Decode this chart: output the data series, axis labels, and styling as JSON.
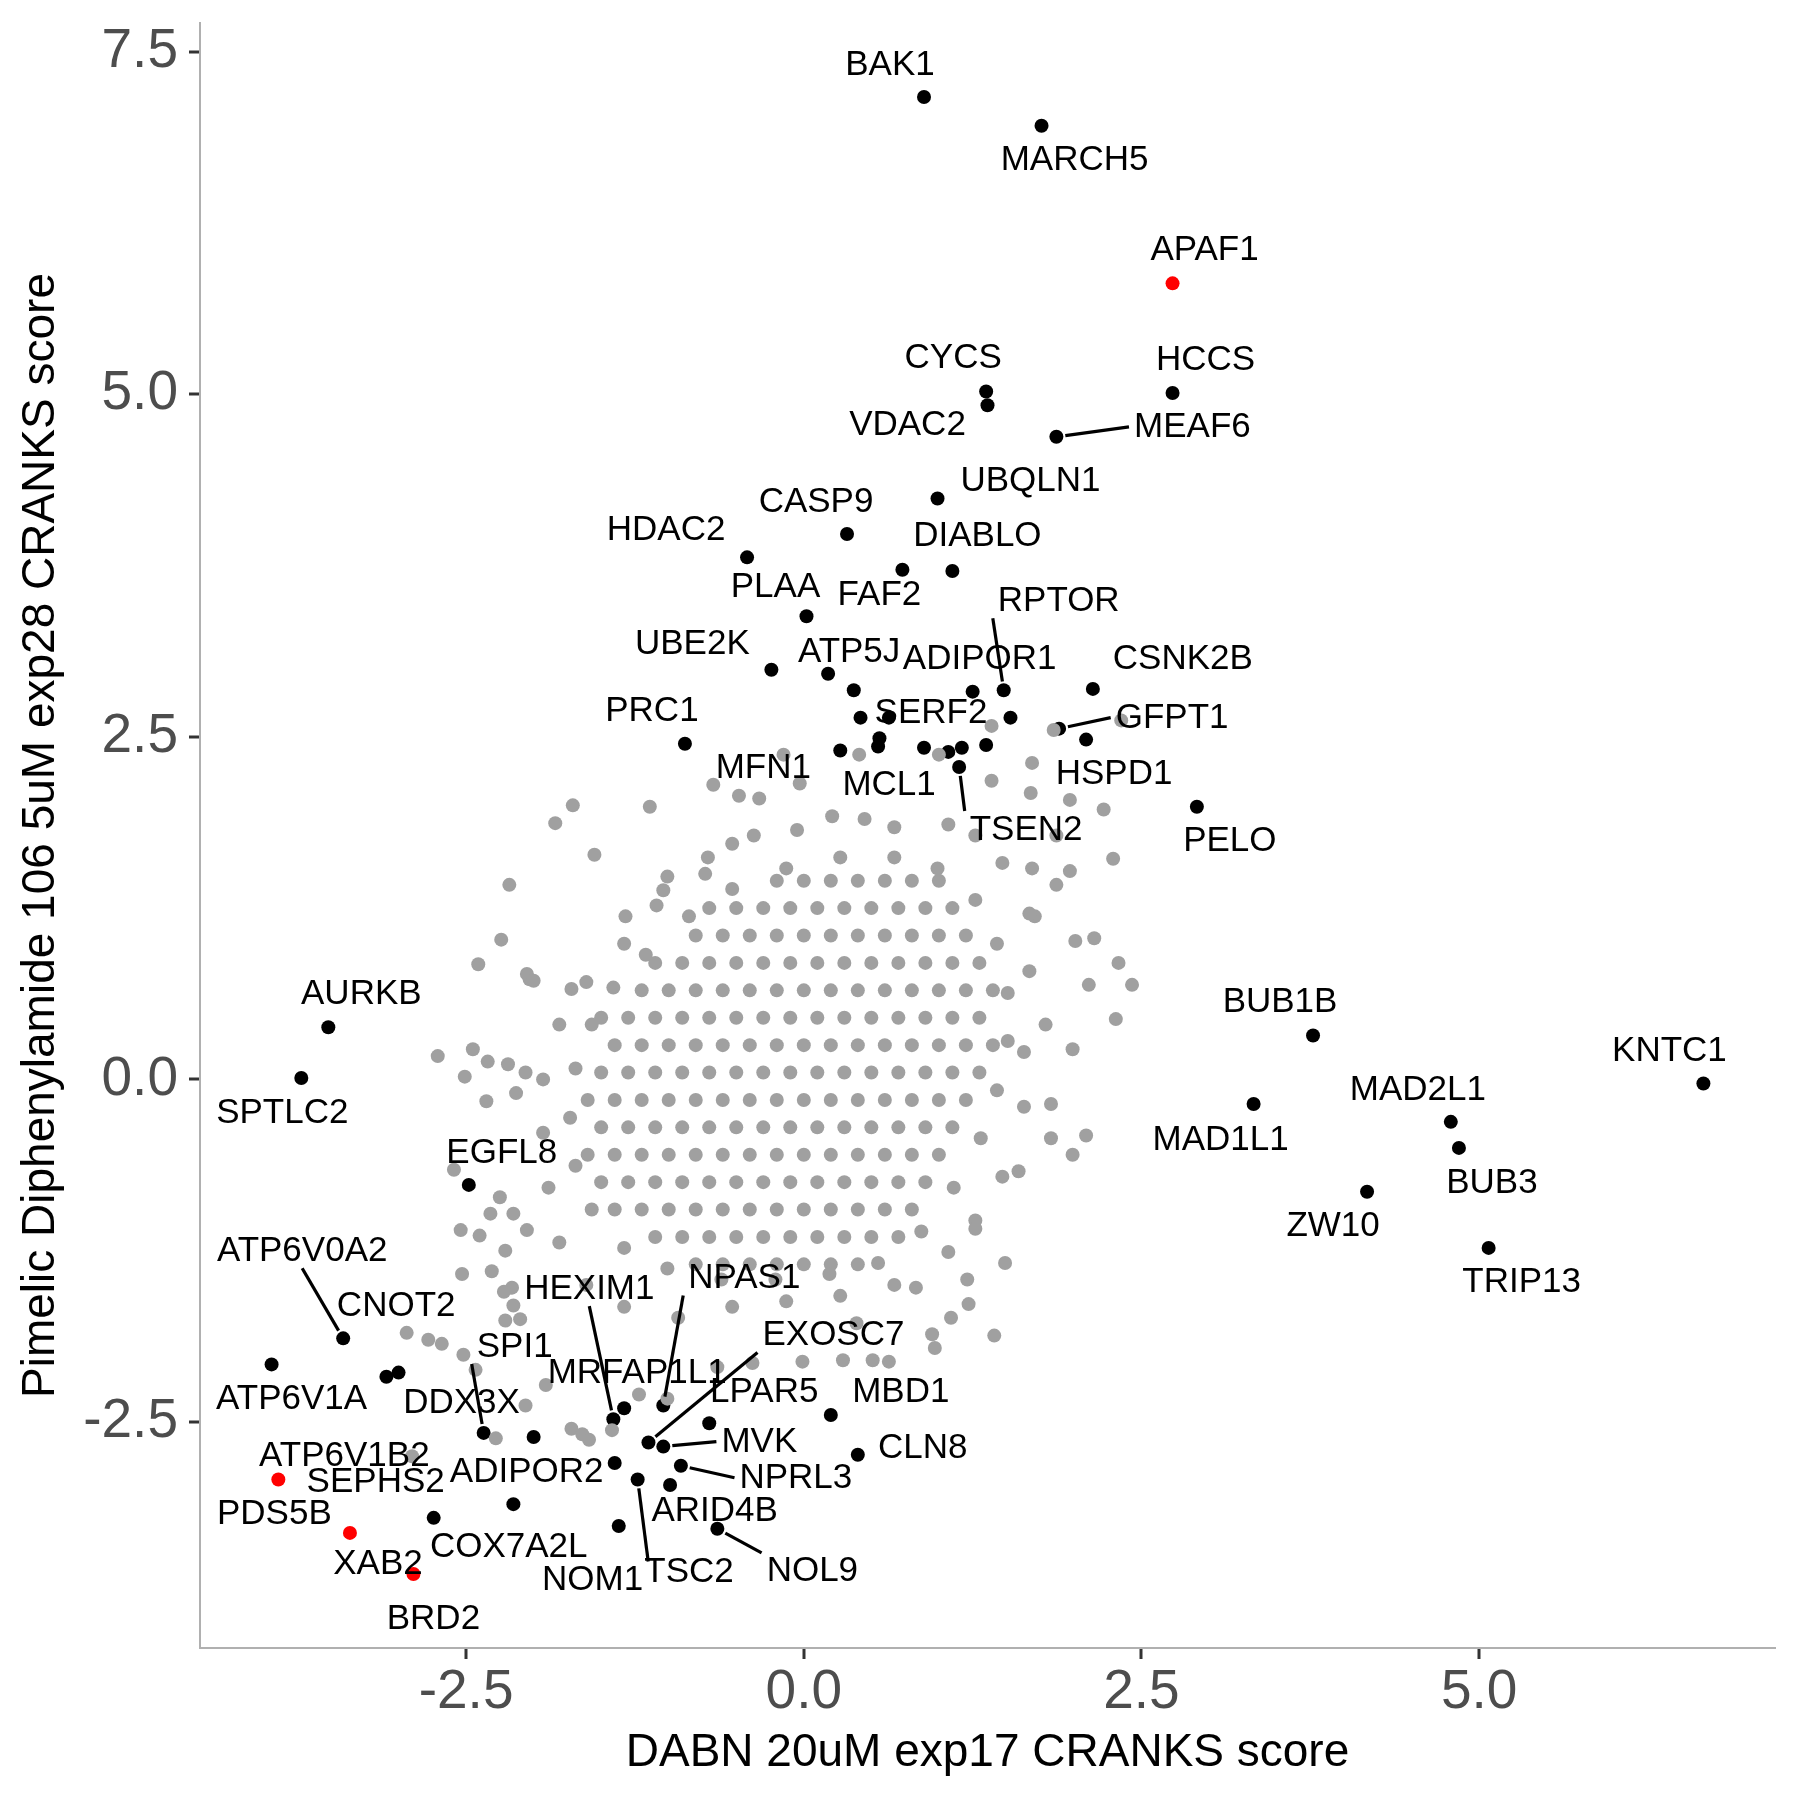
{
  "chart_data": {
    "type": "scatter",
    "xlabel": "DABN 20uM exp17 CRANKS score",
    "ylabel": "Pimelic Diphenylamide 106 5uM exp28 CRANKS score",
    "xlim": [
      -4.47,
      7.19
    ],
    "ylim": [
      -4.15,
      7.71
    ],
    "xticks": [
      -2.5,
      {
        "value": 0,
        "label": "0.0"
      },
      2.5,
      {
        "value": 5,
        "label": "5.0"
      }
    ],
    "yticks": [
      -2.5,
      {
        "value": 0,
        "label": "0.0"
      },
      2.5,
      {
        "value": 5,
        "label": "5.0"
      },
      7.5
    ],
    "marker": "circle",
    "series": [
      {
        "color": "#a0a0a0",
        "x": [
          -0.2,
          0,
          0.2,
          0.4,
          0.6,
          0.8,
          1,
          -0.7,
          -0.5,
          -0.3,
          -0.1,
          0.1,
          0.3,
          0.5,
          0.7,
          0.9,
          1.1,
          -0.8,
          -0.6,
          -0.4,
          -0.2,
          0,
          0.2,
          0.4,
          0.6,
          0.8,
          1,
          1.2,
          -1.1,
          -0.9,
          -0.7,
          -0.5,
          -0.3,
          -0.1,
          0.1,
          0.3,
          0.5,
          0.7,
          0.9,
          1.1,
          1.3,
          -1.2,
          -1,
          -0.8,
          -0.6,
          -0.4,
          -0.2,
          0,
          0.2,
          0.4,
          0.6,
          0.8,
          1,
          1.2,
          1.4,
          -1.5,
          -1.3,
          -1.1,
          -0.9,
          -0.7,
          -0.5,
          -0.3,
          -0.1,
          0.1,
          0.3,
          0.5,
          0.7,
          0.9,
          1.1,
          1.3,
          -1.4,
          -1.2,
          -1,
          -0.8,
          -0.6,
          -0.4,
          -0.2,
          0,
          0.2,
          0.4,
          0.6,
          0.8,
          1,
          1.2,
          1.4,
          -1.5,
          -1.3,
          -1.1,
          -0.9,
          -0.7,
          -0.5,
          -0.3,
          -0.1,
          0.1,
          0.3,
          0.5,
          0.7,
          0.9,
          1.1,
          1.3,
          -1.6,
          -1.4,
          -1.2,
          -1,
          -0.8,
          -0.6,
          -0.4,
          -0.2,
          0,
          0.2,
          0.4,
          0.6,
          0.8,
          1,
          1.2,
          -1.5,
          -1.3,
          -1.1,
          -0.9,
          -0.7,
          -0.5,
          -0.3,
          -0.1,
          0.1,
          0.3,
          0.5,
          0.7,
          0.9,
          1.1,
          -1.6,
          -1.4,
          -1.2,
          -1,
          -0.8,
          -0.6,
          -0.4,
          -0.2,
          0,
          0.2,
          0.4,
          0.6,
          0.8,
          1,
          -1.5,
          -1.3,
          -1.1,
          -0.9,
          -0.7,
          -0.5,
          -0.3,
          -0.1,
          0.1,
          0.3,
          0.5,
          0.7,
          0.9,
          -1.4,
          -1.2,
          -1,
          -0.8,
          -0.6,
          -0.4,
          -0.2,
          0,
          0.2,
          0.4,
          0.6,
          0.8,
          -1.1,
          -0.9,
          -0.7,
          -0.5,
          -0.3,
          -0.1,
          0.1,
          0.3,
          0.5,
          0.7,
          -0.8,
          -0.6,
          -0.4,
          -0.2,
          0,
          0.2,
          0.4,
          -1.17,
          -0.85,
          -0.53,
          -0.13,
          0.27,
          0.67,
          0.99,
          1.27,
          1.43,
          1.51,
          1.51,
          1.43,
          1.31,
          1.11,
          0.87,
          0.55,
          0.19,
          -0.21,
          -0.61,
          -1.01,
          -1.33,
          -1.57,
          -1.69,
          -1.73,
          -1.69,
          -1.57,
          -1.41,
          1.67,
          1.79,
          1.63,
          1.71,
          1.47,
          1.27,
          1.07,
          1.87,
          -1.93,
          -1.89,
          -1.81,
          -1.61,
          -1.33,
          -0.93,
          -0.53,
          -0.13,
          0.27,
          0.67,
          -1.81,
          -1.93,
          -1.61,
          -1.33,
          -1.09,
          -0.73,
          1.63,
          1.47,
          1.27,
          0.41,
          1.0,
          1.39,
          1.85,
          2.35,
          1.69,
          2.22,
          2.29,
          1.97,
          1.68,
          -1.71,
          -1.14,
          -1.55,
          -0.67,
          -0.48,
          -0.33,
          -0.03,
          -0.15,
          -1.32,
          -1.04,
          -0.71,
          -1.84,
          -2.18,
          -1.01,
          -2.24,
          -2.41,
          -2.03,
          -2.71,
          -2.45,
          -2.51,
          -2.19,
          -2.06,
          -2.35,
          -2.13,
          -2.59,
          -2.25,
          -2.54,
          -2.4,
          -2.53,
          -2.31,
          -2.16,
          2.43,
          2.31,
          2.33,
          2.15,
          2.01,
          2.11,
          1.99,
          2.09,
          1.99,
          1.83,
          1.83,
          1.97,
          1.67,
          1.59,
          1.49,
          1.41,
          1.21,
          1.09,
          0.97,
          0.63,
          0.51,
          0.29,
          -0.01,
          0.95,
          1.27,
          1.07,
          -0.05,
          0.21,
          0.45,
          0.67,
          -0.53,
          -0.37,
          1.39,
          1.69,
          1.87,
          -2.05,
          -2.0,
          -1.72,
          -2.34,
          -2.32,
          -2.15,
          -2.05,
          -2.21,
          -2.22,
          -2.15,
          -2.21,
          -2.1,
          -2.94,
          -2.78,
          -2.68,
          -2.52,
          -2.43,
          -1.91,
          -2.06,
          -2.28,
          -1.72,
          -1.64,
          -1.59,
          -1.42,
          -2.9,
          -1.22,
          -1.01,
          -0.38,
          1.22,
          -0.64,
          0.83,
          0.39
        ],
        "values": [
          1.45,
          1.45,
          1.45,
          1.45,
          1.45,
          1.45,
          1.45,
          1.25,
          1.25,
          1.25,
          1.25,
          1.25,
          1.25,
          1.25,
          1.25,
          1.25,
          1.25,
          1.05,
          1.05,
          1.05,
          1.05,
          1.05,
          1.05,
          1.05,
          1.05,
          1.05,
          1.05,
          1.05,
          0.85,
          0.85,
          0.85,
          0.85,
          0.85,
          0.85,
          0.85,
          0.85,
          0.85,
          0.85,
          0.85,
          0.85,
          0.85,
          0.65,
          0.65,
          0.65,
          0.65,
          0.65,
          0.65,
          0.65,
          0.65,
          0.65,
          0.65,
          0.65,
          0.65,
          0.65,
          0.65,
          0.45,
          0.45,
          0.45,
          0.45,
          0.45,
          0.45,
          0.45,
          0.45,
          0.45,
          0.45,
          0.45,
          0.45,
          0.45,
          0.45,
          0.45,
          0.25,
          0.25,
          0.25,
          0.25,
          0.25,
          0.25,
          0.25,
          0.25,
          0.25,
          0.25,
          0.25,
          0.25,
          0.25,
          0.25,
          0.25,
          0.05,
          0.05,
          0.05,
          0.05,
          0.05,
          0.05,
          0.05,
          0.05,
          0.05,
          0.05,
          0.05,
          0.05,
          0.05,
          0.05,
          0.05,
          -0.15,
          -0.15,
          -0.15,
          -0.15,
          -0.15,
          -0.15,
          -0.15,
          -0.15,
          -0.15,
          -0.15,
          -0.15,
          -0.15,
          -0.15,
          -0.15,
          -0.15,
          -0.35,
          -0.35,
          -0.35,
          -0.35,
          -0.35,
          -0.35,
          -0.35,
          -0.35,
          -0.35,
          -0.35,
          -0.35,
          -0.35,
          -0.35,
          -0.35,
          -0.55,
          -0.55,
          -0.55,
          -0.55,
          -0.55,
          -0.55,
          -0.55,
          -0.55,
          -0.55,
          -0.55,
          -0.55,
          -0.55,
          -0.55,
          -0.55,
          -0.75,
          -0.75,
          -0.75,
          -0.75,
          -0.75,
          -0.75,
          -0.75,
          -0.75,
          -0.75,
          -0.75,
          -0.75,
          -0.75,
          -0.75,
          -0.95,
          -0.95,
          -0.95,
          -0.95,
          -0.95,
          -0.95,
          -0.95,
          -0.95,
          -0.95,
          -0.95,
          -0.95,
          -0.95,
          -1.15,
          -1.15,
          -1.15,
          -1.15,
          -1.15,
          -1.15,
          -1.15,
          -1.15,
          -1.15,
          -1.15,
          -1.35,
          -1.35,
          -1.35,
          -1.35,
          -1.35,
          -1.35,
          -1.35,
          0.91,
          1.19,
          1.39,
          1.54,
          1.62,
          1.62,
          1.54,
          1.31,
          0.99,
          0.63,
          0.28,
          -0.08,
          -0.43,
          -0.79,
          -1.11,
          -1.34,
          -1.42,
          -1.46,
          -1.46,
          -1.38,
          -1.23,
          -0.95,
          -0.63,
          -0.28,
          0.08,
          0.4,
          0.67,
          0.79,
          0.4,
          0.2,
          1.19,
          1.58,
          1.78,
          1.86,
          1.78,
          -0.39,
          -0.79,
          -1.19,
          -1.5,
          -1.66,
          -1.74,
          -1.66,
          -1.62,
          -1.58,
          -1.5,
          0.4,
          0.0,
          0.71,
          0.99,
          1.27,
          1.5,
          -0.2,
          -0.71,
          -1.03,
          2.37,
          2.37,
          2.58,
          2.55,
          2.62,
          2.31,
          1.97,
          1.61,
          2.04,
          2.09,
          2.0,
          1.99,
          1.64,
          2.15,
          2.07,
          2.05,
          2.16,
          2.37,
          1.19,
          1.38,
          1.62,
          1.87,
          1.42,
          1.48,
          1.02,
          0.84,
          0.73,
          0.17,
          0.22,
          0.02,
          0.11,
          0.05,
          -0.16,
          -0.1,
          -0.66,
          -0.86,
          -1.1,
          -1.14,
          -1.42,
          -1.4,
          -1.52,
          0.69,
          0.44,
          0.85,
          1.03,
          1.01,
          0.69,
          0.22,
          -0.41,
          -0.55,
          -0.18,
          -0.43,
          1.52,
          1.21,
          -0.67,
          -1.34,
          -1.87,
          -1.46,
          -1.74,
          -1.96,
          -2.06,
          -2.05,
          -2.05,
          -2.06,
          -1.86,
          -1.09,
          -1.26,
          1.82,
          1.92,
          1.9,
          1.84,
          1.72,
          1.78,
          2.18,
          1.54,
          1.42,
          0.77,
          0.72,
          0.66,
          0.13,
          -0.98,
          -0.98,
          -1.1,
          -1.25,
          -1.55,
          -1.65,
          -1.76,
          -1.75,
          -1.85,
          -1.9,
          -1.93,
          -2.01,
          -2.12,
          -2.23,
          -2.38,
          -2.62,
          -2.55,
          -2.59,
          -2.63,
          -2.56,
          -2.75,
          -2.3,
          -2.33,
          -2.07,
          -1.64,
          -2.1,
          -1.52,
          -1.78
        ]
      },
      {
        "color": "#000000",
        "x": [
          0.89,
          1.76,
          1.35,
          2.73,
          1.36,
          1.87,
          0.99,
          0.32,
          -0.42,
          1.1,
          0.73,
          0.02,
          -0.24,
          0.18,
          1.25,
          1.48,
          2.14,
          -0.88,
          0.89,
          1.89,
          2.09,
          0.27,
          0.55,
          1.15,
          2.91,
          3.77,
          6.66,
          4.79,
          3.33,
          4.85,
          4.17,
          5.07,
          -3.52,
          -3.72,
          -2.48,
          -3.41,
          -3.94,
          -3.0,
          -2.37,
          -1.41,
          -1.04,
          -1.15,
          -1.33,
          -0.7,
          0.2,
          0.4,
          -1.04,
          -2.0,
          -0.91,
          -1.4,
          -2.74,
          -0.99,
          -1.23,
          -0.64,
          -1.37,
          0.37,
          0.42,
          0.63,
          1.53,
          0.56,
          1.07,
          1.17,
          1.35,
          -3.09,
          -2.15
        ],
        "values": [
          7.17,
          6.96,
          5.02,
          5.01,
          4.92,
          4.69,
          4.24,
          3.98,
          3.81,
          3.71,
          3.72,
          3.38,
          2.99,
          2.96,
          2.83,
          2.84,
          2.85,
          2.45,
          2.42,
          2.56,
          2.48,
          2.4,
          2.43,
          2.28,
          1.99,
          0.32,
          -0.03,
          -0.31,
          -0.18,
          -0.5,
          -0.82,
          -1.23,
          0.38,
          0.01,
          -0.77,
          -1.89,
          -2.08,
          -2.14,
          -2.58,
          -2.48,
          -2.38,
          -2.65,
          -2.4,
          -2.51,
          -2.45,
          -2.74,
          -2.68,
          -2.61,
          -2.82,
          -2.8,
          -3.2,
          -2.96,
          -2.92,
          -3.28,
          -3.26,
          2.84,
          2.64,
          2.64,
          2.64,
          2.49,
          2.39,
          2.42,
          2.44,
          -2.17,
          -3.1
        ]
      },
      {
        "color": "#ff0000",
        "x": [
          2.73,
          -3.89,
          -3.36,
          -2.89
        ],
        "values": [
          5.81,
          -2.92,
          -3.31,
          -3.61
        ]
      }
    ],
    "annotations": [
      {
        "text": "BAK1",
        "x": 0.89,
        "y": 7.17
      },
      {
        "text": "MARCH5",
        "x": 1.76,
        "y": 6.96
      },
      {
        "text": "APAF1",
        "x": 2.73,
        "y": 5.81
      },
      {
        "text": "CYCS",
        "x": 1.35,
        "y": 5.02
      },
      {
        "text": "HCCS",
        "x": 2.73,
        "y": 5.01
      },
      {
        "text": "VDAC2",
        "x": 1.36,
        "y": 4.92
      },
      {
        "text": "MEAF6",
        "x": 1.87,
        "y": 4.69
      },
      {
        "text": "UBQLN1",
        "x": 0.99,
        "y": 4.24
      },
      {
        "text": "CASP9",
        "x": 0.32,
        "y": 3.98
      },
      {
        "text": "HDAC2",
        "x": -0.42,
        "y": 3.81
      },
      {
        "text": "DIABLO",
        "x": 1.1,
        "y": 3.71
      },
      {
        "text": "FAF2",
        "x": 0.73,
        "y": 3.72
      },
      {
        "text": "PLAA",
        "x": 0.02,
        "y": 3.38
      },
      {
        "text": "UBE2K",
        "x": -0.24,
        "y": 2.99
      },
      {
        "text": "ATP5J",
        "x": 0.18,
        "y": 2.96
      },
      {
        "text": "ADIPOR1",
        "x": 1.25,
        "y": 2.83
      },
      {
        "text": "RPTOR",
        "x": 1.48,
        "y": 2.84
      },
      {
        "text": "CSNK2B",
        "x": 2.14,
        "y": 2.85
      },
      {
        "text": "PRC1",
        "x": -0.88,
        "y": 2.45
      },
      {
        "text": "SERF2",
        "x": 0.89,
        "y": 2.42
      },
      {
        "text": "GFPT1",
        "x": 1.89,
        "y": 2.56
      },
      {
        "text": "HSPD1",
        "x": 2.09,
        "y": 2.48
      },
      {
        "text": "MFN1",
        "x": 0.27,
        "y": 2.4
      },
      {
        "text": "MCL1",
        "x": 0.55,
        "y": 2.43
      },
      {
        "text": "TSEN2",
        "x": 1.15,
        "y": 2.28
      },
      {
        "text": "PELO",
        "x": 2.91,
        "y": 1.99
      },
      {
        "text": "BUB1B",
        "x": 3.77,
        "y": 0.32
      },
      {
        "text": "KNTC1",
        "x": 6.66,
        "y": -0.03
      },
      {
        "text": "MAD2L1",
        "x": 4.79,
        "y": -0.31
      },
      {
        "text": "MAD1L1",
        "x": 3.33,
        "y": -0.18
      },
      {
        "text": "BUB3",
        "x": 4.85,
        "y": -0.5
      },
      {
        "text": "ZW10",
        "x": 4.17,
        "y": -0.82
      },
      {
        "text": "TRIP13",
        "x": 5.07,
        "y": -1.23
      },
      {
        "text": "AURKB",
        "x": -3.52,
        "y": 0.38
      },
      {
        "text": "SPTLC2",
        "x": -3.72,
        "y": 0.01
      },
      {
        "text": "EGFL8",
        "x": -2.48,
        "y": -0.77
      },
      {
        "text": "ATP6V0A2",
        "x": -3.41,
        "y": -1.89
      },
      {
        "text": "CNOT2",
        "x": -3.41,
        "y": -1.89
      },
      {
        "text": "ATP6V1A",
        "x": -3.94,
        "y": -2.08
      },
      {
        "text": "DDX3X",
        "x": -3.0,
        "y": -2.14
      },
      {
        "text": "SPI1",
        "x": -2.37,
        "y": -2.58
      },
      {
        "text": "HEXIM1",
        "x": -1.41,
        "y": -2.48
      },
      {
        "text": "NPAS1",
        "x": -1.04,
        "y": -2.38
      },
      {
        "text": "EXOSC7",
        "x": -1.15,
        "y": -2.65
      },
      {
        "text": "MRFAP1L1",
        "x": -1.33,
        "y": -2.4
      },
      {
        "text": "LPAR5",
        "x": -0.7,
        "y": -2.51
      },
      {
        "text": "MBD1",
        "x": 0.2,
        "y": -2.45
      },
      {
        "text": "CLN8",
        "x": 0.4,
        "y": -2.74
      },
      {
        "text": "MVK",
        "x": -1.04,
        "y": -2.68
      },
      {
        "text": "ADIPOR2",
        "x": -2.0,
        "y": -2.61
      },
      {
        "text": "NPRL3",
        "x": -0.91,
        "y": -2.82
      },
      {
        "text": "ARID4B",
        "x": -1.4,
        "y": -2.8
      },
      {
        "text": "ATP6V1B2",
        "x": -3.89,
        "y": -2.92
      },
      {
        "text": "SEPHS2",
        "x": -2.74,
        "y": -3.2
      },
      {
        "text": "PDS5B",
        "x": -3.89,
        "y": -2.92
      },
      {
        "text": "TSC2",
        "x": -0.99,
        "y": -2.96
      },
      {
        "text": "NOM1",
        "x": -1.23,
        "y": -2.92
      },
      {
        "text": "NOL9",
        "x": -0.64,
        "y": -3.28
      },
      {
        "text": "XAB2",
        "x": -3.36,
        "y": -3.31
      },
      {
        "text": "COX7A2L",
        "x": -1.37,
        "y": -3.26
      },
      {
        "text": "BRD2",
        "x": -2.89,
        "y": -3.61
      }
    ]
  }
}
